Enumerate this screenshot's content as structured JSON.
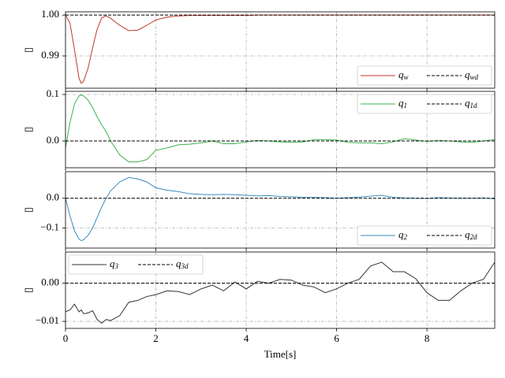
{
  "chart_data": [
    {
      "type": "line",
      "ylabel": "▯",
      "x": [
        0,
        0.1,
        0.2,
        0.3,
        0.35,
        0.4,
        0.5,
        0.6,
        0.7,
        0.8,
        0.9,
        1.0,
        1.2,
        1.4,
        1.6,
        1.8,
        2.0,
        2.25,
        2.5,
        2.75,
        3.0,
        3.25,
        3.5,
        3.75,
        4.0,
        4.25,
        4.5,
        4.75,
        5.0,
        5.25,
        5.5,
        5.75,
        6.0,
        6.25,
        6.5,
        6.75,
        7.0,
        7.25,
        7.5,
        7.75,
        8.0,
        8.25,
        8.5,
        8.75,
        9.0,
        9.25,
        9.5
      ],
      "series": [
        {
          "name": "q_w",
          "color": "#c0392b",
          "linestyle": "solid",
          "values": [
            1.0,
            0.998,
            0.9915,
            0.9845,
            0.9833,
            0.9838,
            0.987,
            0.992,
            0.9965,
            0.9993,
            0.9998,
            0.9992,
            0.9975,
            0.9962,
            0.9963,
            0.9975,
            0.9988,
            0.9995,
            0.9998,
            0.9999,
            0.9999,
            0.9999,
            0.9999,
            0.9999,
            0.9999,
            1.0,
            1.0,
            1.0,
            1.0,
            1.0,
            1.0,
            1.0,
            1.0,
            1.0,
            1.0,
            1.0,
            1.0,
            1.0,
            1.0,
            1.0,
            1.0,
            1.0,
            1.0,
            1.0,
            1.0,
            1.0,
            1.0
          ]
        },
        {
          "name": "q_wd",
          "color": "#000000",
          "linestyle": "dashed",
          "values": [
            1.0,
            1.0,
            1.0,
            1.0,
            1.0,
            1.0,
            1.0,
            1.0,
            1.0,
            1.0,
            1.0,
            1.0,
            1.0,
            1.0,
            1.0,
            1.0,
            1.0,
            1.0,
            1.0,
            1.0,
            1.0,
            1.0,
            1.0,
            1.0,
            1.0,
            1.0,
            1.0,
            1.0,
            1.0,
            1.0,
            1.0,
            1.0,
            1.0,
            1.0,
            1.0,
            1.0,
            1.0,
            1.0,
            1.0,
            1.0,
            1.0,
            1.0,
            1.0,
            1.0,
            1.0,
            1.0,
            1.0
          ]
        }
      ],
      "xlim": [
        0,
        9.5
      ],
      "xticks": [
        0,
        2,
        4,
        6,
        8
      ],
      "xticklabels": false,
      "ylim": [
        0.9821,
        1.0008
      ],
      "yticks": [
        0.99,
        {
          "value": 1.0,
          "label": "1.00"
        }
      ],
      "grid": true,
      "legend": "lower right"
    },
    {
      "type": "line",
      "ylabel": "▯",
      "x": [
        0,
        0.1,
        0.2,
        0.3,
        0.35,
        0.4,
        0.5,
        0.6,
        0.7,
        0.8,
        0.9,
        1.0,
        1.2,
        1.4,
        1.6,
        1.8,
        2.0,
        2.25,
        2.5,
        2.75,
        3.0,
        3.25,
        3.5,
        3.75,
        4.0,
        4.25,
        4.5,
        4.75,
        5.0,
        5.25,
        5.5,
        5.75,
        6.0,
        6.25,
        6.5,
        6.75,
        7.0,
        7.25,
        7.5,
        7.75,
        8.0,
        8.25,
        8.5,
        8.75,
        9.0,
        9.25,
        9.5
      ],
      "series": [
        {
          "name": "q_1",
          "color": "#3cb44b",
          "linestyle": "solid",
          "values": [
            -0.015,
            0.04,
            0.08,
            0.097,
            0.099,
            0.097,
            0.088,
            0.072,
            0.052,
            0.035,
            0.02,
            0.0,
            -0.03,
            -0.045,
            -0.045,
            -0.04,
            -0.02,
            -0.015,
            -0.008,
            -0.007,
            -0.004,
            0.0,
            -0.006,
            -0.006,
            -0.002,
            0.001,
            0.0,
            -0.002,
            -0.003,
            -0.002,
            0.003,
            0.003,
            0.002,
            -0.003,
            -0.004,
            -0.004,
            -0.006,
            -0.002,
            0.005,
            0.002,
            -0.001,
            0.001,
            0.0,
            -0.002,
            -0.003,
            0.0,
            0.003
          ]
        },
        {
          "name": "q_1d",
          "color": "#000000",
          "linestyle": "dashed",
          "values": [
            0,
            0,
            0,
            0,
            0,
            0,
            0,
            0,
            0,
            0,
            0,
            0,
            0,
            0,
            0,
            0,
            0,
            0,
            0,
            0,
            0,
            0,
            0,
            0,
            0,
            0,
            0,
            0,
            0,
            0,
            0,
            0,
            0,
            0,
            0,
            0,
            0,
            0,
            0,
            0,
            0,
            0,
            0,
            0,
            0,
            0,
            0
          ]
        }
      ],
      "xlim": [
        0,
        9.5
      ],
      "xticks": [
        0,
        2,
        4,
        6,
        8
      ],
      "xticklabels": false,
      "ylim": [
        -0.0576,
        0.1068
      ],
      "yticks": [
        {
          "value": 0.0,
          "label": "0.0"
        },
        0.1
      ],
      "grid": true,
      "legend": "upper right"
    },
    {
      "type": "line",
      "ylabel": "▯",
      "x": [
        0,
        0.1,
        0.2,
        0.3,
        0.35,
        0.4,
        0.5,
        0.6,
        0.7,
        0.8,
        0.9,
        1.0,
        1.2,
        1.4,
        1.6,
        1.8,
        2.0,
        2.25,
        2.5,
        2.75,
        3.0,
        3.25,
        3.5,
        3.75,
        4.0,
        4.25,
        4.5,
        4.75,
        5.0,
        5.25,
        5.5,
        5.75,
        6.0,
        6.25,
        6.5,
        6.75,
        7.0,
        7.25,
        7.5,
        7.75,
        8.0,
        8.25,
        8.5,
        8.75,
        9.0,
        9.25,
        9.5
      ],
      "series": [
        {
          "name": "q_2",
          "color": "#3a8bbf",
          "linestyle": "solid",
          "values": [
            0.0,
            -0.06,
            -0.11,
            -0.138,
            -0.143,
            -0.14,
            -0.125,
            -0.1,
            -0.065,
            -0.03,
            0.0,
            0.025,
            0.055,
            0.07,
            0.065,
            0.055,
            0.035,
            0.027,
            0.022,
            0.015,
            0.013,
            0.012,
            0.013,
            0.012,
            0.01,
            0.008,
            0.009,
            0.006,
            0.005,
            0.003,
            0.003,
            0.002,
            0.0,
            0.002,
            0.004,
            0.007,
            0.01,
            0.003,
            0.001,
            0.0,
            -0.001,
            0.002,
            0.001,
            0.0,
            0.0,
            0.001,
            -0.002
          ]
        },
        {
          "name": "q_2d",
          "color": "#000000",
          "linestyle": "dashed",
          "values": [
            0,
            0,
            0,
            0,
            0,
            0,
            0,
            0,
            0,
            0,
            0,
            0,
            0,
            0,
            0,
            0,
            0,
            0,
            0,
            0,
            0,
            0,
            0,
            0,
            0,
            0,
            0,
            0,
            0,
            0,
            0,
            0,
            0,
            0,
            0,
            0,
            0,
            0,
            0,
            0,
            0,
            0,
            0,
            0,
            0,
            0,
            0
          ]
        }
      ],
      "xlim": [
        0,
        9.5
      ],
      "xticks": [
        0,
        2,
        4,
        6,
        8
      ],
      "xticklabels": false,
      "ylim": [
        -0.168,
        0.0895
      ],
      "yticks": [
        {
          "value": -0.1,
          "label": "−0.1"
        },
        {
          "value": 0.0,
          "label": "0.0"
        }
      ],
      "grid": true,
      "legend": "lower right"
    },
    {
      "type": "line",
      "ylabel": "▯",
      "xlabel": "Time[s]",
      "x": [
        0,
        0.1,
        0.2,
        0.3,
        0.35,
        0.4,
        0.5,
        0.6,
        0.7,
        0.8,
        0.9,
        1.0,
        1.2,
        1.4,
        1.6,
        1.8,
        2.0,
        2.25,
        2.5,
        2.75,
        3.0,
        3.25,
        3.5,
        3.75,
        4.0,
        4.25,
        4.5,
        4.75,
        5.0,
        5.25,
        5.5,
        5.75,
        6.0,
        6.25,
        6.5,
        6.75,
        7.0,
        7.25,
        7.5,
        7.75,
        8.0,
        8.25,
        8.5,
        8.75,
        9.0,
        9.25,
        9.5
      ],
      "series": [
        {
          "name": "q_3",
          "color": "#333333",
          "linestyle": "solid",
          "values": [
            -0.0075,
            -0.007,
            -0.0055,
            -0.0075,
            -0.007,
            -0.008,
            -0.0078,
            -0.0072,
            -0.0095,
            -0.0105,
            -0.0095,
            -0.0098,
            -0.0085,
            -0.005,
            -0.0045,
            -0.0035,
            -0.003,
            -0.002,
            -0.0022,
            -0.003,
            -0.0015,
            -0.0005,
            -0.002,
            0.0003,
            -0.0015,
            0.0005,
            0.0,
            0.001,
            0.0008,
            -0.0005,
            -0.001,
            -0.0025,
            -0.0015,
            0.0,
            0.001,
            0.0045,
            0.0055,
            0.003,
            0.003,
            0.0012,
            -0.0025,
            -0.0045,
            -0.0045,
            -0.002,
            0.0,
            0.001,
            0.0055
          ]
        },
        {
          "name": "q_3d",
          "color": "#000000",
          "linestyle": "dashed",
          "values": [
            0,
            0,
            0,
            0,
            0,
            0,
            0,
            0,
            0,
            0,
            0,
            0,
            0,
            0,
            0,
            0,
            0,
            0,
            0,
            0,
            0,
            0,
            0,
            0,
            0,
            0,
            0,
            0,
            0,
            0,
            0,
            0,
            0,
            0,
            0,
            0,
            0,
            0,
            0,
            0,
            0,
            0,
            0,
            0,
            0,
            0,
            0
          ]
        }
      ],
      "xlim": [
        0,
        9.5
      ],
      "xticks": [
        0,
        2,
        4,
        6,
        8
      ],
      "xticklabels": true,
      "ylim": [
        -0.01184,
        0.00816
      ],
      "yticks": [
        {
          "value": -0.01,
          "label": "−0.01"
        },
        {
          "value": 0.0,
          "label": "0.00"
        }
      ],
      "grid": true,
      "legend": "upper left"
    }
  ]
}
